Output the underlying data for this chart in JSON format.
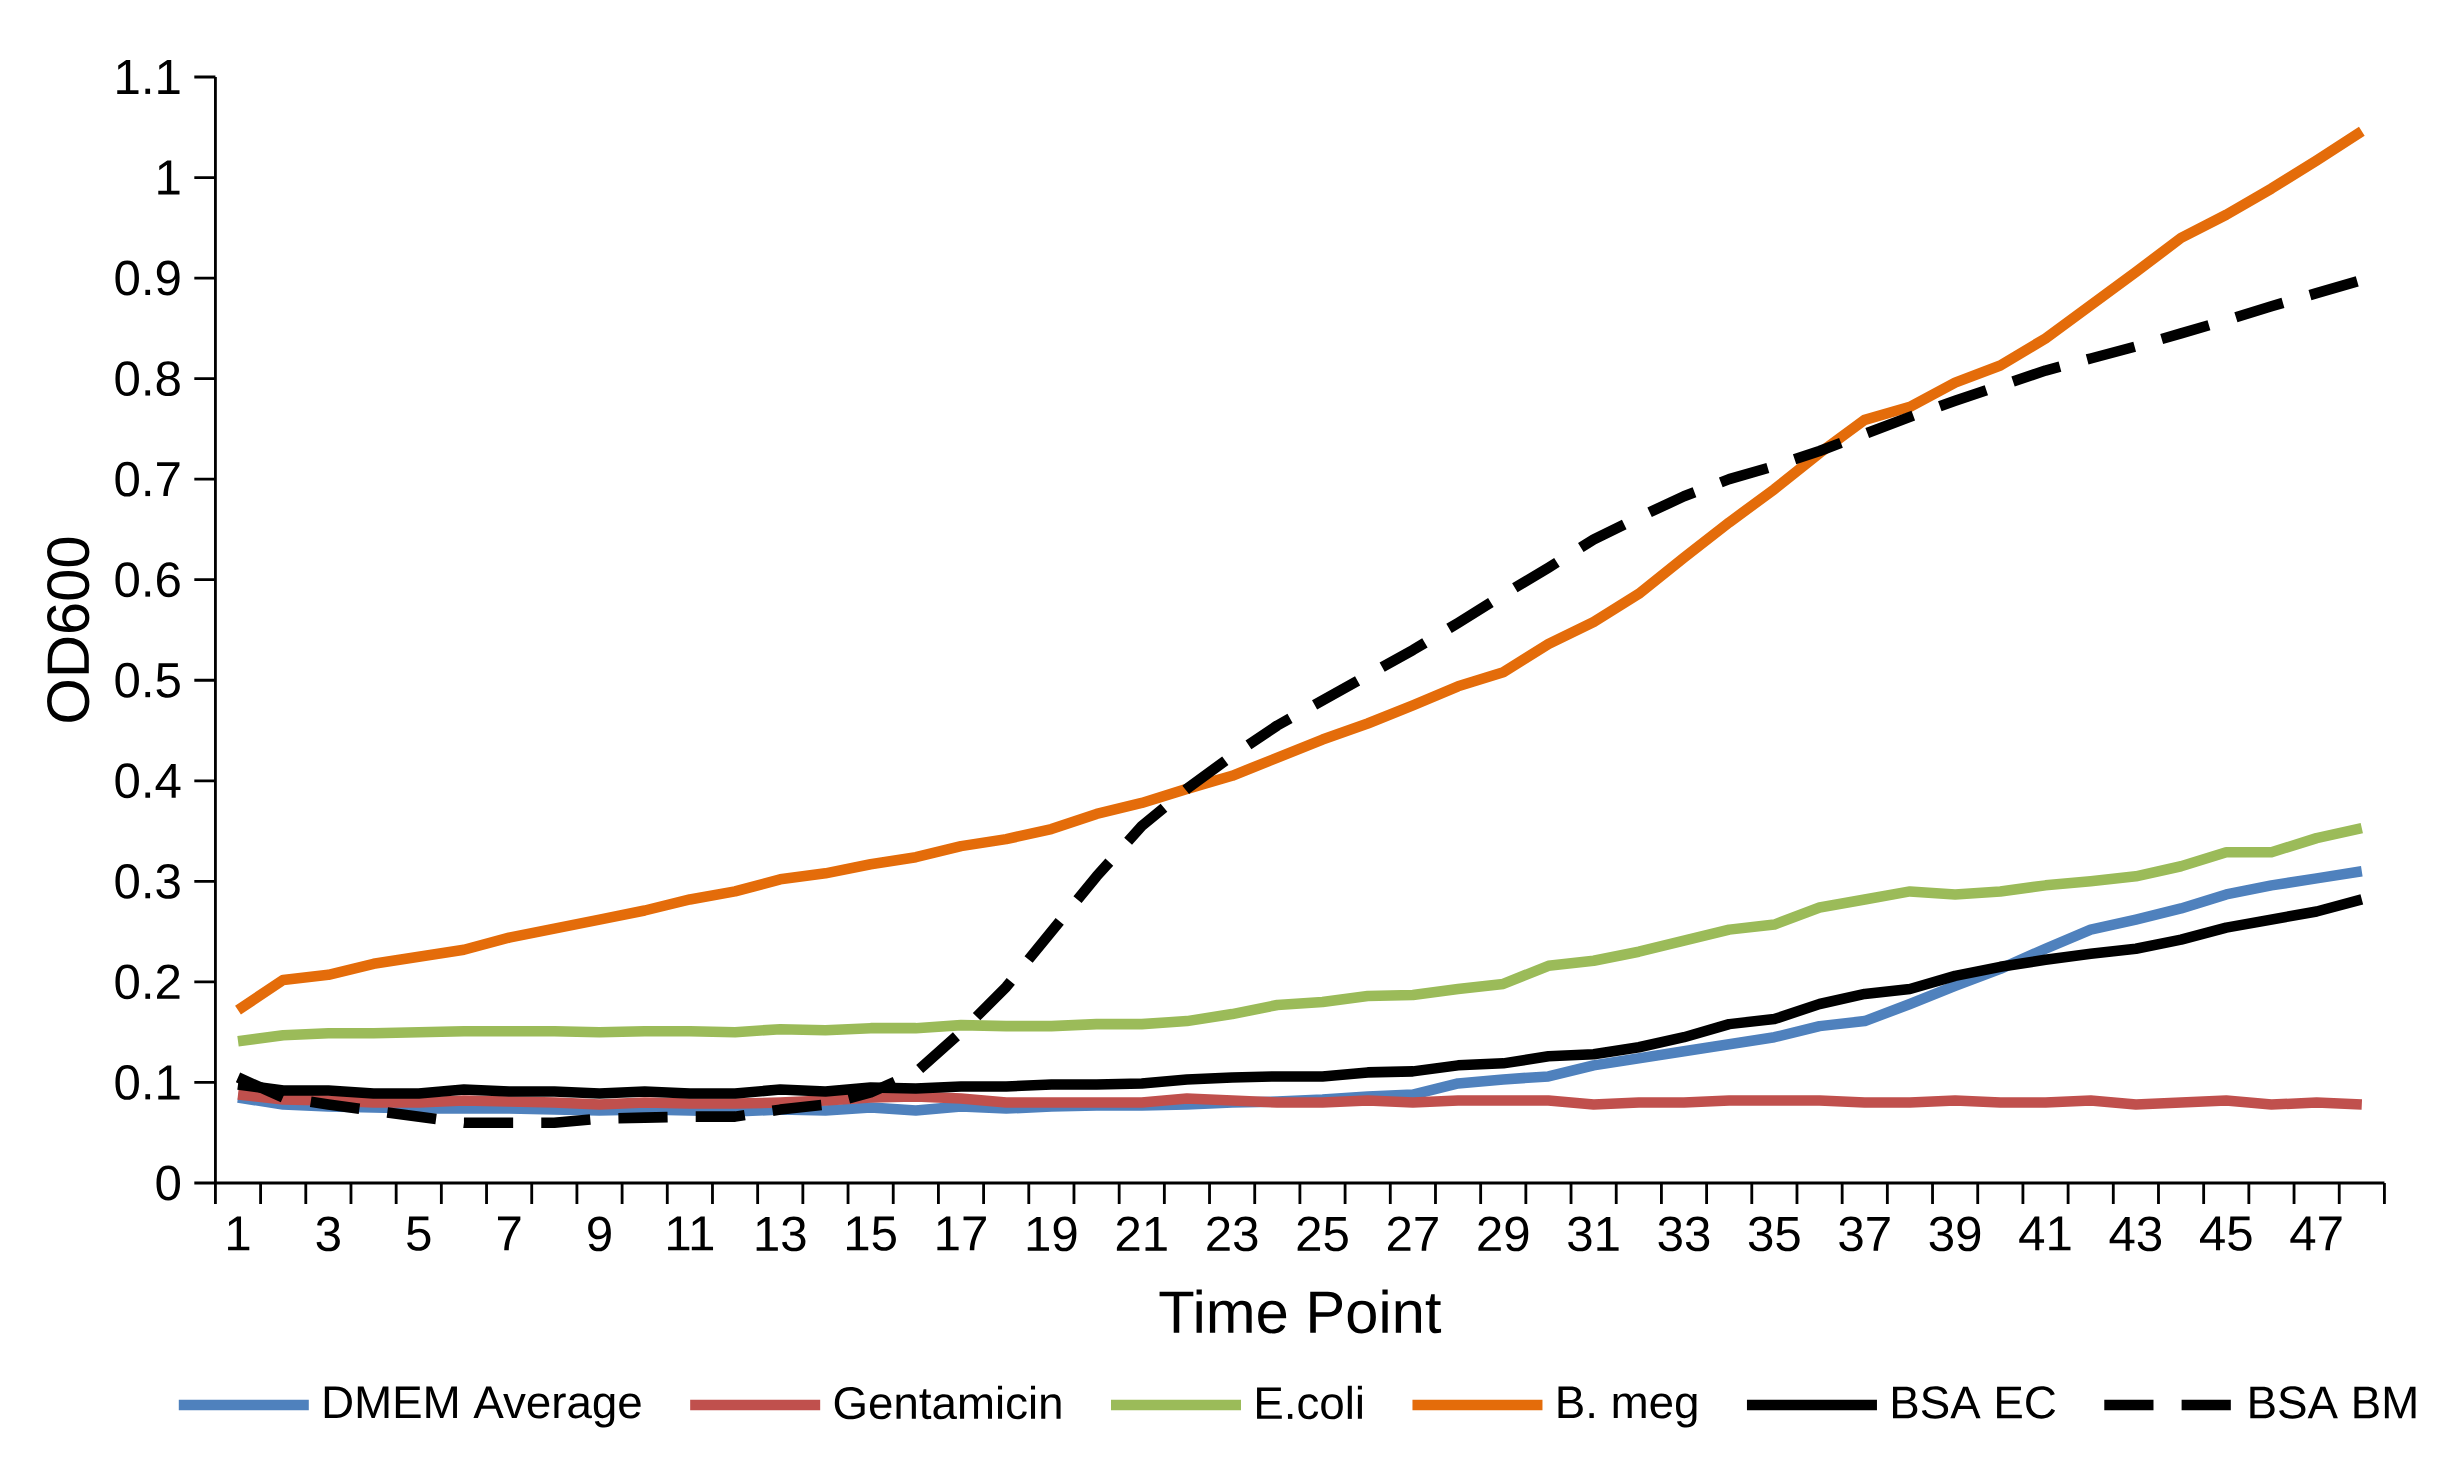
{
  "chart_data": {
    "type": "line",
    "xlabel": "Time Point",
    "ylabel": "OD600",
    "categories": [
      "1",
      null,
      "3",
      null,
      "5",
      null,
      "7",
      null,
      "9",
      null,
      "11",
      null,
      "13",
      null,
      "15",
      null,
      "17",
      null,
      "19",
      null,
      "21",
      null,
      "23",
      null,
      "25",
      null,
      "27",
      null,
      "29",
      null,
      "31",
      null,
      "33",
      null,
      "35",
      null,
      "37",
      null,
      "39",
      null,
      "41",
      null,
      "43",
      null,
      "45",
      null,
      "47",
      null
    ],
    "ylim": [
      0,
      1.1
    ],
    "yticks": [
      0,
      0.1,
      0.2,
      0.3,
      0.4,
      0.5,
      0.6,
      0.7,
      0.8,
      0.9,
      1,
      1.1
    ],
    "grid": false,
    "legend": "bottom",
    "marker": "none",
    "series": [
      {
        "name": "DMEM Average",
        "color": "#4f81bd",
        "line_style": "solid",
        "values": [
          0.085,
          0.078,
          0.076,
          0.075,
          0.074,
          0.074,
          0.074,
          0.073,
          0.072,
          0.073,
          0.072,
          0.071,
          0.073,
          0.072,
          0.075,
          0.072,
          0.076,
          0.074,
          0.076,
          0.077,
          0.077,
          0.078,
          0.08,
          0.081,
          0.083,
          0.086,
          0.088,
          0.099,
          0.103,
          0.106,
          0.117,
          0.124,
          0.131,
          0.138,
          0.145,
          0.156,
          0.161,
          0.178,
          0.196,
          0.213,
          0.233,
          0.252,
          0.262,
          0.273,
          0.287,
          0.296,
          0.303,
          0.31
        ]
      },
      {
        "name": "Gentamicin",
        "color": "#c0504d",
        "line_style": "solid",
        "values": [
          0.088,
          0.083,
          0.082,
          0.08,
          0.08,
          0.082,
          0.081,
          0.08,
          0.078,
          0.08,
          0.079,
          0.079,
          0.08,
          0.082,
          0.085,
          0.086,
          0.084,
          0.08,
          0.08,
          0.08,
          0.08,
          0.084,
          0.082,
          0.08,
          0.08,
          0.082,
          0.08,
          0.082,
          0.082,
          0.082,
          0.078,
          0.08,
          0.08,
          0.082,
          0.082,
          0.082,
          0.08,
          0.08,
          0.082,
          0.08,
          0.08,
          0.082,
          0.078,
          0.08,
          0.082,
          0.078,
          0.08,
          0.078
        ]
      },
      {
        "name": "E.coli",
        "color": "#9bbb59",
        "line_style": "solid",
        "values": [
          0.141,
          0.147,
          0.149,
          0.149,
          0.15,
          0.151,
          0.151,
          0.151,
          0.15,
          0.151,
          0.151,
          0.15,
          0.153,
          0.152,
          0.154,
          0.154,
          0.157,
          0.156,
          0.156,
          0.158,
          0.158,
          0.161,
          0.168,
          0.177,
          0.18,
          0.186,
          0.187,
          0.193,
          0.198,
          0.216,
          0.221,
          0.23,
          0.241,
          0.252,
          0.257,
          0.274,
          0.282,
          0.29,
          0.287,
          0.29,
          0.296,
          0.3,
          0.305,
          0.315,
          0.329,
          0.329,
          0.343,
          0.353
        ]
      },
      {
        "name": "B. meg",
        "color": "#e46c0a",
        "line_style": "solid",
        "values": [
          0.172,
          0.202,
          0.207,
          0.218,
          0.225,
          0.232,
          0.244,
          0.253,
          0.262,
          0.271,
          0.282,
          0.29,
          0.302,
          0.308,
          0.317,
          0.324,
          0.335,
          0.342,
          0.352,
          0.367,
          0.378,
          0.392,
          0.405,
          0.423,
          0.441,
          0.457,
          0.475,
          0.494,
          0.508,
          0.536,
          0.558,
          0.586,
          0.622,
          0.657,
          0.69,
          0.726,
          0.759,
          0.772,
          0.796,
          0.813,
          0.84,
          0.873,
          0.906,
          0.94,
          0.963,
          0.989,
          1.017,
          1.046
        ]
      },
      {
        "name": "BSA EC",
        "color": "#000000",
        "line_style": "solid",
        "values": [
          0.098,
          0.092,
          0.092,
          0.089,
          0.089,
          0.093,
          0.091,
          0.091,
          0.089,
          0.091,
          0.089,
          0.089,
          0.093,
          0.091,
          0.095,
          0.094,
          0.096,
          0.096,
          0.098,
          0.098,
          0.099,
          0.103,
          0.105,
          0.106,
          0.106,
          0.11,
          0.111,
          0.117,
          0.119,
          0.126,
          0.128,
          0.135,
          0.145,
          0.158,
          0.163,
          0.178,
          0.188,
          0.193,
          0.206,
          0.215,
          0.222,
          0.228,
          0.233,
          0.242,
          0.254,
          0.262,
          0.27,
          0.282
        ]
      },
      {
        "name": "BSA BM",
        "color": "#000000",
        "line_style": "dashed",
        "values": [
          0.105,
          0.085,
          0.078,
          0.072,
          0.066,
          0.06,
          0.06,
          0.06,
          0.064,
          0.065,
          0.066,
          0.066,
          0.073,
          0.078,
          0.09,
          0.11,
          0.15,
          0.195,
          0.25,
          0.305,
          0.355,
          0.392,
          0.425,
          0.455,
          0.48,
          0.505,
          0.53,
          0.557,
          0.585,
          0.612,
          0.64,
          0.662,
          0.683,
          0.7,
          0.713,
          0.728,
          0.745,
          0.762,
          0.778,
          0.793,
          0.808,
          0.82,
          0.832,
          0.845,
          0.858,
          0.872,
          0.885,
          0.898
        ]
      }
    ]
  }
}
